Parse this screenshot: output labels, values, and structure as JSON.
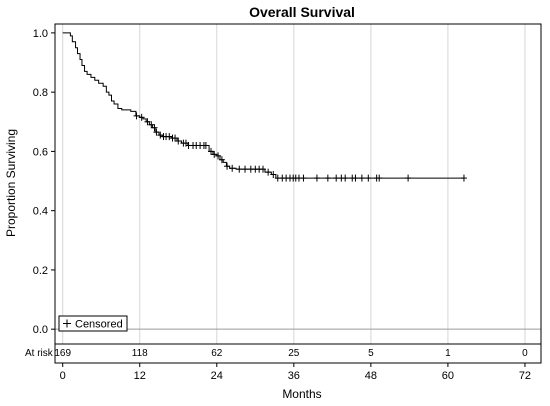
{
  "chart_data": {
    "type": "line",
    "title": "Overall Survival",
    "xlabel": "Months",
    "ylabel": "Proportion Surviving",
    "xlim": [
      -1.2,
      74.5
    ],
    "ylim": [
      -0.05,
      1.03
    ],
    "xticks": [
      0,
      12,
      24,
      36,
      48,
      60,
      72
    ],
    "yticks": [
      "0.0",
      "0.2",
      "0.4",
      "0.6",
      "0.8",
      "1.0"
    ],
    "grid": "vertical",
    "legend": {
      "position": "bottom-left",
      "entries": [
        "Censored"
      ]
    },
    "at_risk": {
      "label": "At risk",
      "times": [
        0,
        12,
        24,
        36,
        48,
        60,
        72
      ],
      "counts": [
        "169",
        "118",
        "62",
        "25",
        "5",
        "1",
        "0"
      ]
    },
    "series": [
      {
        "steps": [
          [
            0,
            1.0
          ],
          [
            1.2,
            0.99
          ],
          [
            1.5,
            0.97
          ],
          [
            2.0,
            0.95
          ],
          [
            2.3,
            0.93
          ],
          [
            2.7,
            0.91
          ],
          [
            3.0,
            0.89
          ],
          [
            3.4,
            0.87
          ],
          [
            3.8,
            0.86
          ],
          [
            4.4,
            0.85
          ],
          [
            5.0,
            0.84
          ],
          [
            5.6,
            0.83
          ],
          [
            6.3,
            0.82
          ],
          [
            6.8,
            0.8
          ],
          [
            7.2,
            0.79
          ],
          [
            7.6,
            0.77
          ],
          [
            8.0,
            0.76
          ],
          [
            8.6,
            0.745
          ],
          [
            9.2,
            0.74
          ],
          [
            10.6,
            0.735
          ],
          [
            11.4,
            0.72
          ],
          [
            12.0,
            0.715
          ],
          [
            12.5,
            0.71
          ],
          [
            13.0,
            0.7
          ],
          [
            13.5,
            0.69
          ],
          [
            14.0,
            0.68
          ],
          [
            14.4,
            0.665
          ],
          [
            15.0,
            0.655
          ],
          [
            15.5,
            0.65
          ],
          [
            17.0,
            0.645
          ],
          [
            17.8,
            0.635
          ],
          [
            18.5,
            0.628
          ],
          [
            19.5,
            0.62
          ],
          [
            22.8,
            0.6
          ],
          [
            23.4,
            0.59
          ],
          [
            24.0,
            0.585
          ],
          [
            24.5,
            0.572
          ],
          [
            25.0,
            0.563
          ],
          [
            25.5,
            0.55
          ],
          [
            26.0,
            0.543
          ],
          [
            27.0,
            0.54
          ],
          [
            31.5,
            0.53
          ],
          [
            32.5,
            0.522
          ],
          [
            33.2,
            0.51
          ]
        ],
        "end_x": 62.6,
        "censored_x": [
          11.5,
          12.3,
          13.2,
          13.8,
          14.3,
          14.6,
          15.2,
          15.7,
          16.1,
          16.6,
          17.1,
          17.5,
          18.0,
          18.8,
          19.2,
          19.6,
          20.3,
          20.8,
          21.4,
          22.0,
          22.3,
          23.1,
          23.6,
          24.2,
          24.8,
          25.6,
          26.4,
          27.5,
          28.4,
          29.3,
          30.0,
          30.6,
          31.2,
          32.0,
          32.8,
          33.5,
          34.2,
          34.8,
          35.4,
          35.9,
          36.3,
          36.8,
          37.5,
          39.6,
          41.3,
          42.6,
          43.4,
          44.0,
          45.1,
          45.6,
          46.6,
          47.6,
          48.9,
          49.3,
          53.8,
          62.5
        ]
      }
    ]
  }
}
